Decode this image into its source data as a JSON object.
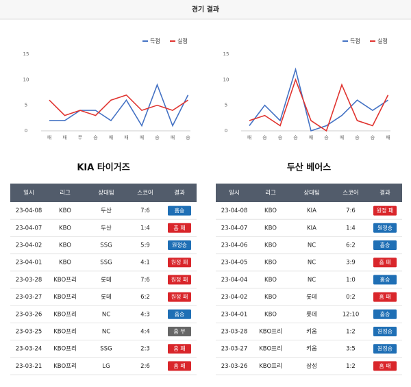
{
  "header": {
    "title": "경기 결과"
  },
  "chart_data": [
    {
      "type": "line",
      "categories": [
        "패",
        "패",
        "무",
        "승",
        "패",
        "패",
        "패",
        "승",
        "패",
        "승"
      ],
      "series": [
        {
          "name": "득점",
          "color": "#4472c4",
          "values": [
            2,
            2,
            4,
            4,
            2,
            6,
            1,
            9,
            1,
            7
          ]
        },
        {
          "name": "실점",
          "color": "#e0332f",
          "values": [
            6,
            3,
            4,
            3,
            6,
            7,
            4,
            5,
            4,
            6
          ]
        }
      ],
      "ylim": [
        0,
        15
      ],
      "yticks": [
        0,
        5,
        10,
        15
      ],
      "grid": false,
      "legend": "top-right"
    },
    {
      "type": "line",
      "categories": [
        "패",
        "승",
        "승",
        "승",
        "패",
        "승",
        "패",
        "승",
        "승",
        "패"
      ],
      "series": [
        {
          "name": "득점",
          "color": "#4472c4",
          "values": [
            1,
            5,
            2,
            12,
            0,
            1,
            3,
            6,
            4,
            6
          ]
        },
        {
          "name": "실점",
          "color": "#e0332f",
          "values": [
            2,
            3,
            1,
            10,
            2,
            0,
            9,
            2,
            1,
            7
          ]
        }
      ],
      "ylim": [
        0,
        15
      ],
      "yticks": [
        0,
        5,
        10,
        15
      ],
      "grid": false,
      "legend": "top-right"
    }
  ],
  "tables": [
    {
      "title": "KIA 타이거즈",
      "columns": [
        "일시",
        "리그",
        "상대팀",
        "스코어",
        "결과"
      ],
      "rows": [
        [
          "23-04-08",
          "KBO",
          "두산",
          "7:6",
          "홈승"
        ],
        [
          "23-04-07",
          "KBO",
          "두산",
          "1:4",
          "홈 패"
        ],
        [
          "23-04-02",
          "KBO",
          "SSG",
          "5:9",
          "원정승"
        ],
        [
          "23-04-01",
          "KBO",
          "SSG",
          "4:1",
          "원정 패"
        ],
        [
          "23-03-28",
          "KBO프리",
          "롯데",
          "7:6",
          "원정 패"
        ],
        [
          "23-03-27",
          "KBO프리",
          "롯데",
          "6:2",
          "원정 패"
        ],
        [
          "23-03-26",
          "KBO프리",
          "NC",
          "4:3",
          "홈승"
        ],
        [
          "23-03-25",
          "KBO프리",
          "NC",
          "4:4",
          "홈 무"
        ],
        [
          "23-03-24",
          "KBO프리",
          "SSG",
          "2:3",
          "홈 패"
        ],
        [
          "23-03-21",
          "KBO프리",
          "LG",
          "2:6",
          "홈 패"
        ]
      ],
      "result_colors": [
        "#1f6fb5",
        "#d9262b",
        "#1f6fb5",
        "#d9262b",
        "#d9262b",
        "#d9262b",
        "#1f6fb5",
        "#666666",
        "#d9262b",
        "#d9262b"
      ]
    },
    {
      "title": "두산 베어스",
      "columns": [
        "일시",
        "리그",
        "상대팀",
        "스코어",
        "결과"
      ],
      "rows": [
        [
          "23-04-08",
          "KBO",
          "KIA",
          "7:6",
          "원정 패"
        ],
        [
          "23-04-07",
          "KBO",
          "KIA",
          "1:4",
          "원정승"
        ],
        [
          "23-04-06",
          "KBO",
          "NC",
          "6:2",
          "홈승"
        ],
        [
          "23-04-05",
          "KBO",
          "NC",
          "3:9",
          "홈 패"
        ],
        [
          "23-04-04",
          "KBO",
          "NC",
          "1:0",
          "홈승"
        ],
        [
          "23-04-02",
          "KBO",
          "롯데",
          "0:2",
          "홈 패"
        ],
        [
          "23-04-01",
          "KBO",
          "롯데",
          "12:10",
          "홈승"
        ],
        [
          "23-03-28",
          "KBO프리",
          "키움",
          "1:2",
          "원정승"
        ],
        [
          "23-03-27",
          "KBO프리",
          "키움",
          "3:5",
          "원정승"
        ],
        [
          "23-03-26",
          "KBO프리",
          "삼성",
          "1:2",
          "홈 패"
        ]
      ],
      "result_colors": [
        "#d9262b",
        "#1f6fb5",
        "#1f6fb5",
        "#d9262b",
        "#1f6fb5",
        "#d9262b",
        "#1f6fb5",
        "#1f6fb5",
        "#1f6fb5",
        "#d9262b"
      ]
    }
  ]
}
